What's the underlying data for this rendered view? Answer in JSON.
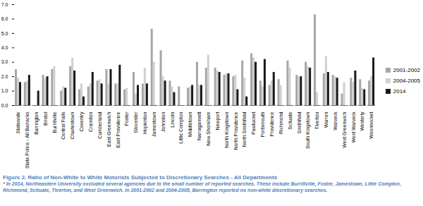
{
  "chart_data": {
    "type": "bar",
    "title": "Figure 2. Ratio of Non-White to White Motorists Subjected to Discretionary Searches - All Departments",
    "annotations": [
      "* In 2014, Northeastern University excluded several agencies due to the small number of reported searches. These include Burrillville, Foster, Jamestown, Little Compton, Richmond, Scituate, Tiverton, and West Greenwich. In 2001-2002 and 2004-2005, Barrington reported no non-white discretionary searches."
    ],
    "categories": [
      "Statewide",
      "State Police - All Barracks",
      "Barrington",
      "Bristol",
      "Burrillville",
      "Central Falls",
      "Charlestown",
      "Coventry",
      "Cranston",
      "Cumberland",
      "East Greenwich",
      "East Providence",
      "Foster",
      "Glocester",
      "Hopkinton",
      "Jamestown",
      "Johnston",
      "Lincoln",
      "Little Compton",
      "Middletown",
      "Narragansett",
      "New Shoreham",
      "Newport",
      "North Kingstown",
      "North Providence",
      "North Smithfield",
      "Pawtucket",
      "Portsmouth",
      "Providence",
      "Richmond",
      "Scituate",
      "Smithfield",
      "South Kingstown",
      "Tiverton",
      "Warren",
      "Warwick",
      "West Greenwich",
      "West Warwick",
      "Westerly",
      "Woonsocket"
    ],
    "series": [
      {
        "name": "2001-2002",
        "color": "#a6a6a6",
        "values": [
          2.5,
          1.6,
          null,
          2.1,
          2.5,
          1.0,
          2.7,
          1.1,
          1.3,
          1.7,
          2.5,
          1.5,
          1.1,
          2.3,
          1.5,
          5.3,
          3.8,
          1.7,
          1.3,
          1.2,
          3.0,
          2.6,
          2.6,
          2.1,
          2.0,
          3.1,
          3.6,
          1.7,
          1.4,
          1.8,
          3.1,
          2.1,
          3.0,
          6.3,
          2.2,
          2.1,
          0.8,
          1.9,
          1.8,
          1.7
        ]
      },
      {
        "name": "2004-2005",
        "color": "#d0d0d0",
        "values": [
          1.9,
          1.7,
          null,
          1.9,
          2.7,
          1.3,
          3.3,
          1.5,
          1.5,
          1.8,
          1.5,
          1.5,
          1.2,
          0.8,
          2.6,
          3.0,
          2.0,
          1.3,
          null,
          1.3,
          1.4,
          3.5,
          2.4,
          2.2,
          2.1,
          1.9,
          3.3,
          1.3,
          1.7,
          1.4,
          2.6,
          2.0,
          2.7,
          0.9,
          3.4,
          2.0,
          1.6,
          1.6,
          1.2,
          2.0
        ]
      },
      {
        "name": "2014",
        "color": "#1a1a1a",
        "values": [
          1.6,
          2.1,
          1.0,
          2.0,
          null,
          1.2,
          2.4,
          0.6,
          2.3,
          1.5,
          2.5,
          2.8,
          null,
          1.4,
          1.5,
          null,
          1.7,
          0.9,
          null,
          1.4,
          1.4,
          null,
          2.3,
          2.2,
          1.1,
          0.6,
          3.0,
          3.2,
          2.3,
          null,
          null,
          2.0,
          2.6,
          null,
          2.3,
          1.9,
          null,
          2.4,
          1.1,
          3.3
        ]
      }
    ],
    "ylim": [
      0,
      7
    ],
    "yticks": [
      0,
      1,
      2,
      3,
      4,
      5,
      6,
      7
    ],
    "grid": false,
    "legend": "right"
  }
}
